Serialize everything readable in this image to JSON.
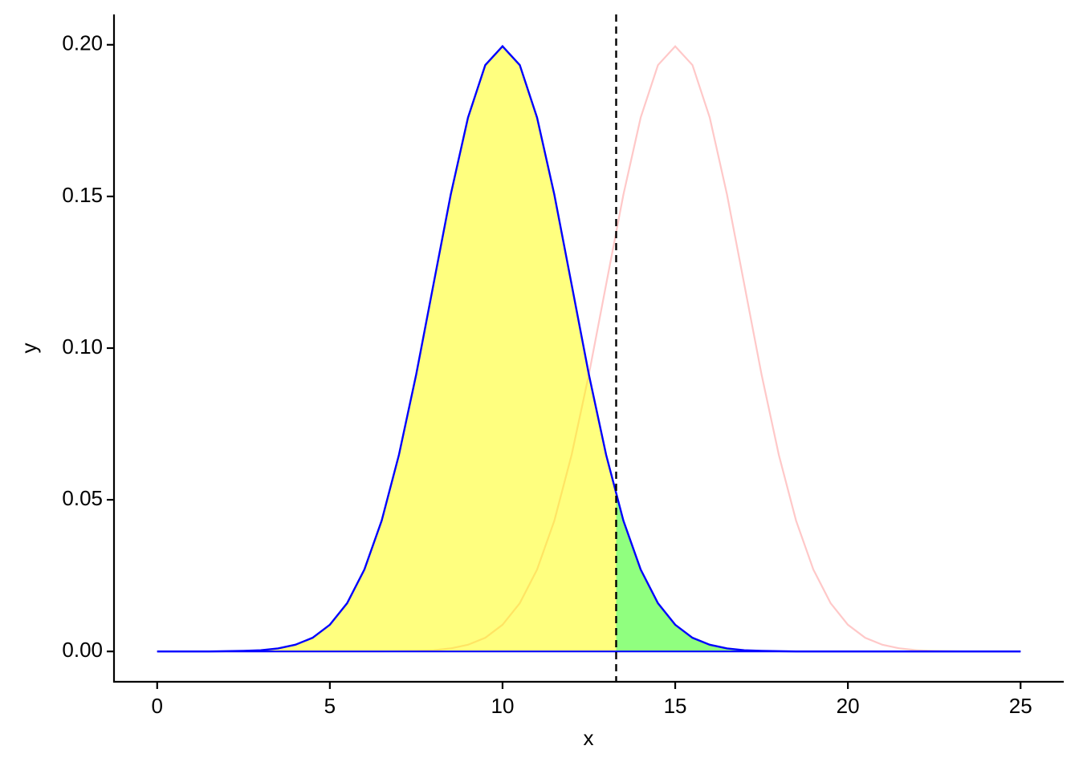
{
  "chart_data": {
    "type": "density",
    "xlabel": "x",
    "ylabel": "y",
    "x": [
      0,
      0.5,
      1,
      1.5,
      2,
      2.5,
      3,
      3.5,
      4,
      4.5,
      5,
      5.5,
      6,
      6.5,
      7,
      7.5,
      8,
      8.5,
      9,
      9.5,
      10,
      10.5,
      11,
      11.5,
      12,
      12.5,
      13,
      13.5,
      14,
      14.5,
      15,
      15.5,
      16,
      16.5,
      17,
      17.5,
      18,
      18.5,
      19,
      19.5,
      20,
      20.5,
      21,
      21.5,
      22,
      22.5,
      23,
      23.5,
      24,
      24.5,
      25
    ],
    "series": [
      {
        "color": "#ffc8c8",
        "values": [
          0,
          0,
          0,
          0,
          0,
          0,
          0,
          0,
          0,
          0,
          0,
          0,
          0,
          0,
          0.0001,
          0.0002,
          0.0004,
          0.001,
          0.0022,
          0.0045,
          0.0088,
          0.0159,
          0.027,
          0.0431,
          0.0648,
          0.0913,
          0.121,
          0.1506,
          0.176,
          0.1933,
          0.1995,
          0.1933,
          0.176,
          0.1506,
          0.121,
          0.0913,
          0.0648,
          0.0431,
          0.027,
          0.0159,
          0.0088,
          0.0045,
          0.0022,
          0.001,
          0.0004,
          0.0002,
          0.0001,
          0,
          0,
          0,
          0
        ]
      },
      {
        "color": "#0000ff",
        "values": [
          0,
          0,
          0,
          0,
          0.0001,
          0.0002,
          0.0004,
          0.001,
          0.0022,
          0.0045,
          0.0088,
          0.0159,
          0.027,
          0.0431,
          0.0648,
          0.0913,
          0.121,
          0.1506,
          0.176,
          0.1933,
          0.1995,
          0.1933,
          0.176,
          0.1506,
          0.121,
          0.0913,
          0.0648,
          0.0431,
          0.027,
          0.0159,
          0.0088,
          0.0045,
          0.0022,
          0.001,
          0.0004,
          0.0002,
          0.0001,
          0,
          0,
          0,
          0,
          0,
          0,
          0,
          0,
          0,
          0,
          0,
          0,
          0,
          0
        ]
      }
    ],
    "threshold": 13.29,
    "fill_below_color": "#ffff00",
    "fill_above_color": "#22ff00",
    "xlim": [
      -1.25,
      26.25
    ],
    "ylim": [
      -0.01,
      0.21
    ],
    "xticks": [
      0,
      5,
      10,
      15,
      20,
      25
    ],
    "yticks": [
      {
        "value": 0,
        "label": "0.00"
      },
      {
        "value": 0.05,
        "label": "0.05"
      },
      {
        "value": 0.1,
        "label": "0.10"
      },
      {
        "value": 0.15,
        "label": "0.15"
      },
      {
        "value": 0.2,
        "label": "0.20"
      }
    ]
  }
}
